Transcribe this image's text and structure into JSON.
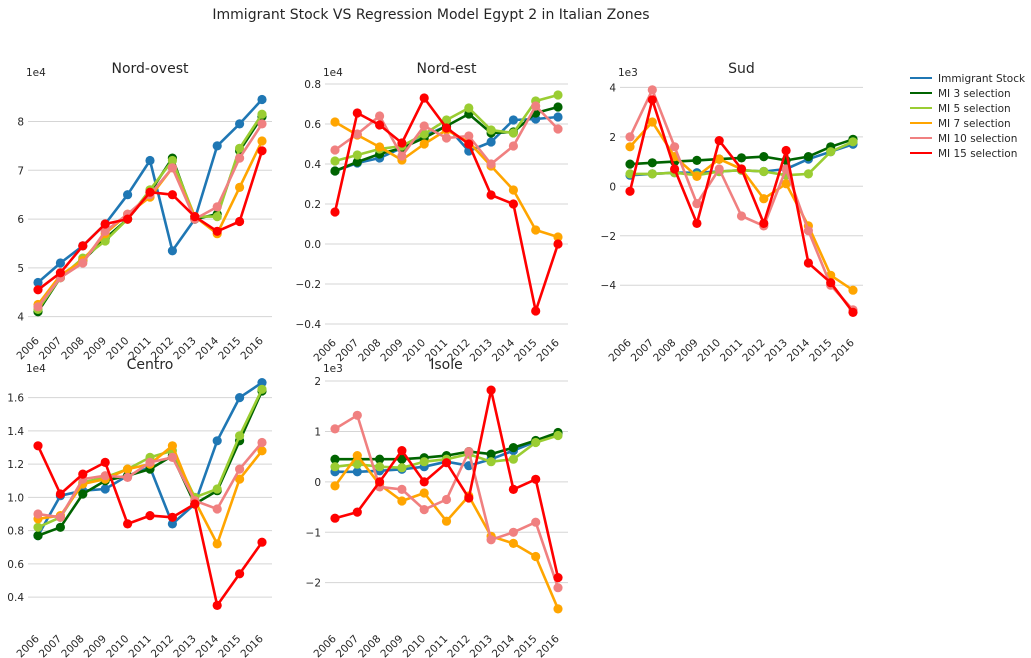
{
  "figure": {
    "title": "Immigrant Stock VS Regression Model Egypt 2 in Italian Zones"
  },
  "legend": {
    "placement": "right",
    "entries": [
      {
        "name": "Immigrant Stock",
        "color": "#1f77b4"
      },
      {
        "name": "MI 3 selection",
        "color": "#006400"
      },
      {
        "name": "MI 5 selection",
        "color": "#9acd32"
      },
      {
        "name": "MI 7 selection",
        "color": "#ffa500"
      },
      {
        "name": "MI 10 selection",
        "color": "#f08080"
      },
      {
        "name": "MI 15 selection",
        "color": "#ff0000"
      }
    ]
  },
  "chart_data": [
    {
      "type": "line",
      "title": "Nord-ovest",
      "y_exponent_label": "1e4",
      "x": [
        "2006",
        "2007",
        "2008",
        "2009",
        "2010",
        "2011",
        "2012",
        "2013",
        "2014",
        "2015",
        "2016"
      ],
      "ylim": [
        3.85,
        8.85
      ],
      "yticks": [
        4,
        5,
        6,
        7,
        8
      ],
      "ytick_labels": [
        "4",
        "5",
        "6",
        "7",
        "8"
      ],
      "grid": true,
      "series": [
        {
          "name": "Immigrant Stock",
          "color": "#1f77b4",
          "values": [
            4.7,
            5.1,
            5.45,
            5.9,
            6.5,
            7.2,
            5.35,
            6.0,
            7.5,
            7.95,
            8.45
          ]
        },
        {
          "name": "MI 3 selection",
          "color": "#006400",
          "values": [
            4.1,
            4.8,
            5.15,
            5.6,
            6.0,
            6.55,
            7.25,
            6.0,
            6.1,
            7.4,
            8.1
          ]
        },
        {
          "name": "MI 5 selection",
          "color": "#9acd32",
          "values": [
            4.15,
            4.8,
            5.2,
            5.55,
            6.0,
            6.6,
            7.2,
            6.05,
            6.05,
            7.45,
            8.15
          ]
        },
        {
          "name": "MI 7 selection",
          "color": "#ffa500",
          "values": [
            4.25,
            4.85,
            5.15,
            5.7,
            6.1,
            6.45,
            7.05,
            6.05,
            5.7,
            6.65,
            7.6
          ]
        },
        {
          "name": "MI 10 selection",
          "color": "#f08080",
          "values": [
            4.2,
            4.8,
            5.1,
            5.75,
            6.1,
            6.5,
            7.05,
            6.0,
            6.25,
            7.25,
            7.95
          ]
        },
        {
          "name": "MI 15 selection",
          "color": "#ff0000",
          "values": [
            4.55,
            4.9,
            5.45,
            5.9,
            6.0,
            6.55,
            6.5,
            6.05,
            5.75,
            5.95,
            7.4
          ]
        }
      ]
    },
    {
      "type": "line",
      "title": "Nord-est",
      "y_exponent_label": "1e4",
      "x": [
        "2006",
        "2007",
        "2008",
        "2009",
        "2010",
        "2011",
        "2012",
        "2013",
        "2014",
        "2015",
        "2016"
      ],
      "ylim": [
        -0.41,
        0.82
      ],
      "yticks": [
        -0.4,
        -0.2,
        0.0,
        0.2,
        0.4,
        0.6,
        0.8
      ],
      "ytick_labels": [
        "−0.4",
        "−0.2",
        "0.0",
        "0.2",
        "0.4",
        "0.6",
        "0.8"
      ],
      "grid": true,
      "series": [
        {
          "name": "Immigrant Stock",
          "color": "#1f77b4",
          "values": [
            0.365,
            0.405,
            0.43,
            0.48,
            0.54,
            0.59,
            0.465,
            0.51,
            0.62,
            0.625,
            0.635
          ]
        },
        {
          "name": "MI 3 selection",
          "color": "#006400",
          "values": [
            0.365,
            0.41,
            0.45,
            0.48,
            0.53,
            0.59,
            0.65,
            0.555,
            0.56,
            0.655,
            0.685
          ]
        },
        {
          "name": "MI 5 selection",
          "color": "#9acd32",
          "values": [
            0.415,
            0.445,
            0.475,
            0.49,
            0.55,
            0.62,
            0.68,
            0.57,
            0.555,
            0.715,
            0.745
          ]
        },
        {
          "name": "MI 7 selection",
          "color": "#ffa500",
          "values": [
            0.61,
            0.545,
            0.485,
            0.42,
            0.5,
            0.57,
            0.51,
            0.39,
            0.27,
            0.07,
            0.035
          ]
        },
        {
          "name": "MI 10 selection",
          "color": "#f08080",
          "values": [
            0.47,
            0.55,
            0.64,
            0.44,
            0.59,
            0.53,
            0.54,
            0.4,
            0.49,
            0.69,
            0.575
          ]
        },
        {
          "name": "MI 15 selection",
          "color": "#ff0000",
          "values": [
            0.16,
            0.655,
            0.595,
            0.505,
            0.73,
            0.58,
            0.5,
            0.245,
            0.2,
            -0.335,
            0.0
          ]
        }
      ]
    },
    {
      "type": "line",
      "title": "Sud",
      "y_exponent_label": "1e3",
      "x": [
        "2006",
        "2007",
        "2008",
        "2009",
        "2010",
        "2011",
        "2012",
        "2013",
        "2014",
        "2015",
        "2016"
      ],
      "ylim": [
        -5.65,
        4.3
      ],
      "yticks": [
        -4,
        -2,
        0,
        2,
        4
      ],
      "ytick_labels": [
        "−4",
        "−2",
        "0",
        "2",
        "4"
      ],
      "grid": true,
      "series": [
        {
          "name": "Immigrant Stock",
          "color": "#1f77b4",
          "values": [
            0.45,
            0.5,
            0.55,
            0.55,
            0.6,
            0.65,
            0.6,
            0.7,
            1.1,
            1.4,
            1.7
          ]
        },
        {
          "name": "MI 3 selection",
          "color": "#006400",
          "values": [
            0.9,
            0.95,
            1.0,
            1.05,
            1.1,
            1.15,
            1.2,
            1.05,
            1.2,
            1.6,
            1.9
          ]
        },
        {
          "name": "MI 5 selection",
          "color": "#9acd32",
          "values": [
            0.5,
            0.5,
            0.55,
            0.45,
            0.6,
            0.65,
            0.6,
            0.45,
            0.5,
            1.4,
            1.8
          ]
        },
        {
          "name": "MI 7 selection",
          "color": "#ffa500",
          "values": [
            1.6,
            2.6,
            1.2,
            0.4,
            1.1,
            0.7,
            -0.5,
            0.1,
            -1.6,
            -3.6,
            -4.2
          ]
        },
        {
          "name": "MI 10 selection",
          "color": "#f08080",
          "values": [
            2.0,
            3.9,
            1.6,
            -0.7,
            0.7,
            -1.2,
            -1.6,
            0.7,
            -1.8,
            -4.0,
            -5.0
          ]
        },
        {
          "name": "MI 15 selection",
          "color": "#ff0000",
          "values": [
            -0.2,
            3.5,
            0.7,
            -1.5,
            1.85,
            0.7,
            -1.5,
            1.45,
            -3.1,
            -3.9,
            -5.1
          ]
        }
      ]
    },
    {
      "type": "line",
      "title": "Centro",
      "y_exponent_label": "1e4",
      "x": [
        "2006",
        "2007",
        "2008",
        "2009",
        "2010",
        "2011",
        "2012",
        "2013",
        "2014",
        "2015",
        "2016"
      ],
      "ylim": [
        0.25,
        1.73
      ],
      "yticks": [
        0.4,
        0.6,
        0.8,
        1.0,
        1.2,
        1.4,
        1.6
      ],
      "ytick_labels": [
        "0.4",
        "0.6",
        "0.8",
        "1.0",
        "1.2",
        "1.4",
        "1.6"
      ],
      "grid": true,
      "series": [
        {
          "name": "Immigrant Stock",
          "color": "#1f77b4",
          "values": [
            0.77,
            1.01,
            1.04,
            1.05,
            1.13,
            1.18,
            0.84,
            0.96,
            1.34,
            1.6,
            1.69
          ]
        },
        {
          "name": "MI 3 selection",
          "color": "#006400",
          "values": [
            0.77,
            0.82,
            1.02,
            1.1,
            1.13,
            1.17,
            1.25,
            0.96,
            1.04,
            1.34,
            1.64
          ]
        },
        {
          "name": "MI 5 selection",
          "color": "#9acd32",
          "values": [
            0.82,
            0.88,
            1.09,
            1.12,
            1.17,
            1.24,
            1.28,
            1.0,
            1.05,
            1.37,
            1.65
          ]
        },
        {
          "name": "MI 7 selection",
          "color": "#ffa500",
          "values": [
            0.87,
            0.89,
            1.08,
            1.11,
            1.17,
            1.2,
            1.31,
            0.98,
            0.72,
            1.11,
            1.28
          ]
        },
        {
          "name": "MI 10 selection",
          "color": "#f08080",
          "values": [
            0.9,
            0.88,
            1.11,
            1.13,
            1.12,
            1.21,
            1.24,
            0.98,
            0.93,
            1.17,
            1.33
          ]
        },
        {
          "name": "MI 15 selection",
          "color": "#ff0000",
          "values": [
            1.31,
            1.02,
            1.14,
            1.21,
            0.84,
            0.89,
            0.88,
            0.96,
            0.35,
            0.54,
            0.73
          ]
        }
      ]
    },
    {
      "type": "line",
      "title": "Isole",
      "y_exponent_label": "1e3",
      "x": [
        "2006",
        "2007",
        "2008",
        "2009",
        "2010",
        "2011",
        "2012",
        "2013",
        "2014",
        "2015",
        "2016"
      ],
      "ylim": [
        -2.78,
        2.1
      ],
      "yticks": [
        -2,
        -1,
        0,
        1,
        2
      ],
      "ytick_labels": [
        "−2",
        "−1",
        "0",
        "1",
        "2"
      ],
      "grid": true,
      "series": [
        {
          "name": "Immigrant Stock",
          "color": "#1f77b4",
          "values": [
            0.2,
            0.2,
            0.22,
            0.25,
            0.3,
            0.4,
            0.32,
            0.45,
            0.62,
            0.8,
            0.95
          ]
        },
        {
          "name": "MI 3 selection",
          "color": "#006400",
          "values": [
            0.45,
            0.45,
            0.45,
            0.45,
            0.48,
            0.52,
            0.6,
            0.55,
            0.68,
            0.82,
            0.98
          ]
        },
        {
          "name": "MI 5 selection",
          "color": "#9acd32",
          "values": [
            0.3,
            0.35,
            0.3,
            0.28,
            0.4,
            0.45,
            0.55,
            0.4,
            0.45,
            0.78,
            0.92
          ]
        },
        {
          "name": "MI 7 selection",
          "color": "#ffa500",
          "values": [
            -0.08,
            0.52,
            -0.05,
            -0.38,
            -0.22,
            -0.78,
            -0.28,
            -1.08,
            -1.22,
            -1.48,
            -2.52
          ]
        },
        {
          "name": "MI 10 selection",
          "color": "#f08080",
          "values": [
            1.05,
            1.32,
            -0.1,
            -0.15,
            -0.55,
            -0.35,
            0.6,
            -1.15,
            -1.0,
            -0.8,
            -2.1
          ]
        },
        {
          "name": "MI 15 selection",
          "color": "#ff0000",
          "values": [
            -0.72,
            -0.6,
            0.0,
            0.62,
            0.0,
            0.38,
            -0.32,
            1.82,
            -0.15,
            0.05,
            -1.9
          ]
        }
      ]
    }
  ]
}
